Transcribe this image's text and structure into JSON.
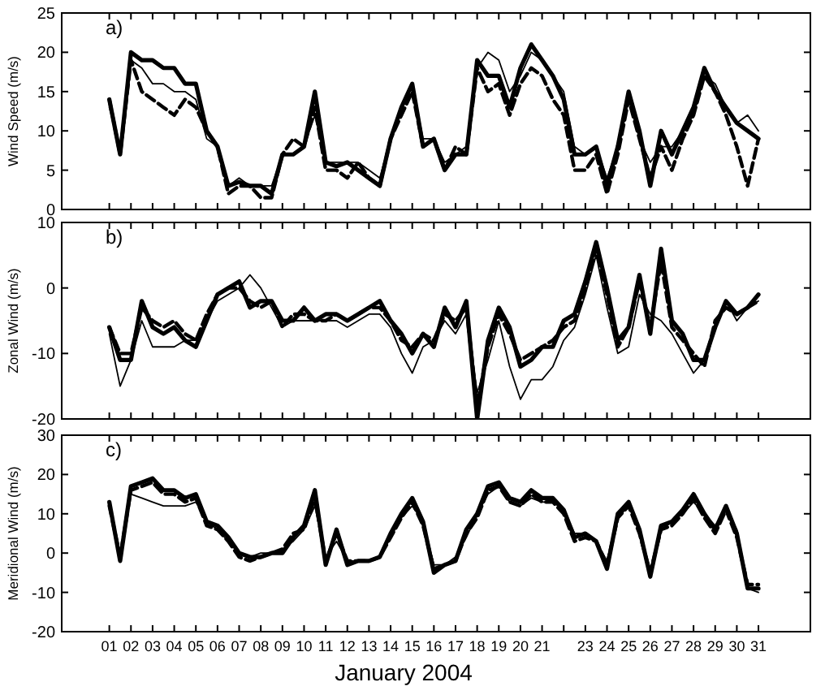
{
  "chart_data": [
    {
      "type": "line",
      "ylabel": "Wind Speed (m/s)",
      "annotations": [
        "a)"
      ],
      "tick_labels": "y",
      "line_style": "solid",
      "marker": "none",
      "grid": false,
      "xlim": [
        -1.2,
        33.4
      ],
      "ylim": [
        0,
        25
      ],
      "yticks": [
        0,
        5,
        10,
        15,
        20,
        25
      ],
      "xticks": [
        1,
        2,
        3,
        4,
        5,
        6,
        7,
        8,
        9,
        10,
        11,
        12,
        13,
        14,
        15,
        16,
        17,
        18,
        19,
        20,
        21,
        22,
        23,
        24,
        25,
        26,
        27,
        28,
        29,
        30,
        31
      ],
      "x": [
        1,
        1.5,
        2,
        2.5,
        3,
        3.5,
        4,
        4.5,
        5,
        5.5,
        6,
        6.5,
        7,
        7.5,
        8,
        8.5,
        9,
        9.5,
        10,
        10.5,
        11,
        11.5,
        12,
        12.5,
        13,
        13.5,
        14,
        14.5,
        15,
        15.5,
        16,
        16.5,
        17,
        17.5,
        18,
        18.5,
        19,
        19.5,
        20,
        20.5,
        21,
        21.5,
        22,
        22.5,
        23,
        23.5,
        24,
        24.5,
        25,
        25.5,
        26,
        26.5,
        27,
        27.5,
        28,
        28.5,
        29,
        29.5,
        30,
        30.5,
        31
      ],
      "series": [
        {
          "color": "#000000",
          "values": [
            14,
            7,
            20,
            19,
            19,
            18,
            18,
            16,
            16,
            10,
            8,
            3,
            3.5,
            3,
            3,
            2,
            7,
            7,
            8,
            15,
            6,
            5.5,
            6,
            5,
            4,
            3,
            9,
            13,
            16,
            8,
            9,
            5,
            7,
            7,
            19,
            17,
            17,
            13,
            18,
            21,
            19,
            17,
            14,
            7,
            7,
            8,
            3,
            8,
            15,
            10,
            3,
            10,
            7,
            10,
            13,
            18,
            15,
            13,
            11,
            10,
            9
          ]
        },
        {
          "color": "#000000",
          "line_style": "dashed",
          "values": [
            14,
            7,
            19,
            15,
            14,
            13,
            12,
            14,
            13,
            10,
            8,
            2,
            3,
            3,
            1.5,
            1.5,
            7,
            9,
            8,
            13,
            5,
            5,
            4,
            6,
            4,
            3,
            9,
            12,
            15,
            8,
            9,
            5,
            8,
            7,
            18,
            15,
            16,
            12,
            16,
            18,
            17,
            14,
            12,
            5,
            5,
            7,
            2,
            7,
            14,
            9,
            4,
            8,
            5,
            9,
            12,
            17,
            15,
            12,
            8,
            3,
            9
          ]
        },
        {
          "color": "#000000",
          "values": [
            13,
            8,
            19,
            18,
            16,
            16,
            15,
            15,
            14,
            9,
            8,
            3,
            4,
            3,
            3,
            3,
            7,
            7,
            8,
            12,
            6,
            6,
            6,
            6,
            5,
            4,
            9,
            13,
            16,
            9,
            9,
            6,
            7,
            8,
            18,
            20,
            19,
            15,
            17,
            20,
            19,
            17,
            15,
            8,
            7,
            8,
            4,
            8,
            14,
            9,
            6,
            8,
            8,
            10,
            12,
            17,
            16,
            13,
            11,
            12,
            10
          ]
        }
      ]
    },
    {
      "type": "line",
      "ylabel": "Zonal Wind (m/s)",
      "annotations": [
        "b)"
      ],
      "tick_labels": "y",
      "line_style": "solid",
      "marker": "none",
      "grid": false,
      "xlim": [
        -1.2,
        33.4
      ],
      "ylim": [
        -20,
        10
      ],
      "yticks": [
        -20,
        -10,
        0,
        10
      ],
      "xticks": [
        1,
        2,
        3,
        4,
        5,
        6,
        7,
        8,
        9,
        10,
        11,
        12,
        13,
        14,
        15,
        16,
        17,
        18,
        19,
        20,
        21,
        22,
        23,
        24,
        25,
        26,
        27,
        28,
        29,
        30,
        31
      ],
      "x": [
        1,
        1.5,
        2,
        2.5,
        3,
        3.5,
        4,
        4.5,
        5,
        5.5,
        6,
        6.5,
        7,
        7.5,
        8,
        8.5,
        9,
        9.5,
        10,
        10.5,
        11,
        11.5,
        12,
        12.5,
        13,
        13.5,
        14,
        14.5,
        15,
        15.5,
        16,
        16.5,
        17,
        17.5,
        18,
        18.5,
        19,
        19.5,
        20,
        20.5,
        21,
        21.5,
        22,
        22.5,
        23,
        23.5,
        24,
        24.5,
        25,
        25.5,
        26,
        26.5,
        27,
        27.5,
        28,
        28.5,
        29,
        29.5,
        30,
        30.5,
        31
      ],
      "series": [
        {
          "color": "#000000",
          "values": [
            -6,
            -11,
            -11,
            -2,
            -6,
            -7,
            -6,
            -8,
            -9,
            -5,
            -1,
            0,
            1,
            -3,
            -2,
            -2,
            -5,
            -5,
            -3,
            -5,
            -4,
            -4,
            -5,
            -4,
            -3,
            -2,
            -5,
            -7,
            -10,
            -7,
            -9,
            -3,
            -6,
            -2,
            -20,
            -8,
            -3,
            -6,
            -12,
            -11,
            -9,
            -9,
            -5,
            -4,
            1,
            7,
            0,
            -8,
            -6,
            2,
            -7,
            6,
            -5,
            -7,
            -11,
            -11,
            -6,
            -2,
            -4,
            -3,
            -1
          ]
        },
        {
          "color": "#000000",
          "line_style": "dashed",
          "values": [
            -6,
            -10,
            -10,
            -3,
            -5,
            -6,
            -5,
            -7,
            -8,
            -4,
            -1,
            0,
            0,
            -2,
            -3,
            -2,
            -6,
            -4,
            -4,
            -5,
            -5,
            -4,
            -5,
            -4,
            -3,
            -3,
            -5,
            -8,
            -9,
            -7,
            -8,
            -4,
            -5,
            -3,
            -18,
            -9,
            -4,
            -7,
            -11,
            -10,
            -9,
            -8,
            -6,
            -5,
            0,
            6,
            -1,
            -9,
            -6,
            1,
            -6,
            4,
            -6,
            -8,
            -10,
            -12,
            -5,
            -3,
            -4,
            -3,
            -2
          ]
        },
        {
          "color": "#000000",
          "values": [
            -7,
            -15,
            -11,
            -5,
            -9,
            -9,
            -9,
            -8,
            -8,
            -5,
            -2,
            -1,
            0,
            2,
            0,
            -3,
            -6,
            -5,
            -5,
            -5,
            -5,
            -5,
            -6,
            -5,
            -4,
            -4,
            -6,
            -10,
            -13,
            -9,
            -8,
            -5,
            -7,
            -4,
            -16,
            -11,
            -5,
            -12,
            -17,
            -14,
            -14,
            -12,
            -8,
            -6,
            -1,
            5,
            -3,
            -10,
            -9,
            -1,
            -4,
            -5,
            -7,
            -10,
            -13,
            -11,
            -6,
            -2,
            -5,
            -3,
            -2
          ]
        }
      ]
    },
    {
      "type": "line",
      "ylabel": "Meridional Wind (m/s)",
      "xlabel": "January 2004",
      "annotations": [
        "c)"
      ],
      "line_style": "solid",
      "marker": "none",
      "grid": false,
      "xlim": [
        -1.2,
        33.4
      ],
      "ylim": [
        -20,
        30
      ],
      "yticks": [
        -20,
        -10,
        0,
        10,
        20,
        30
      ],
      "xticks": [
        {
          "value": 1,
          "label": "01"
        },
        {
          "value": 2,
          "label": "02"
        },
        {
          "value": 3,
          "label": "03"
        },
        {
          "value": 4,
          "label": "04"
        },
        {
          "value": 5,
          "label": "05"
        },
        {
          "value": 6,
          "label": "06"
        },
        {
          "value": 7,
          "label": "07"
        },
        {
          "value": 8,
          "label": "08"
        },
        {
          "value": 9,
          "label": "09"
        },
        {
          "value": 10,
          "label": "10"
        },
        {
          "value": 11,
          "label": "11"
        },
        {
          "value": 12,
          "label": "12"
        },
        {
          "value": 13,
          "label": "13"
        },
        {
          "value": 14,
          "label": "14"
        },
        {
          "value": 15,
          "label": "15"
        },
        {
          "value": 16,
          "label": "16"
        },
        {
          "value": 17,
          "label": "17"
        },
        {
          "value": 18,
          "label": "18"
        },
        {
          "value": 19,
          "label": "19"
        },
        {
          "value": 20,
          "label": "20"
        },
        {
          "value": 21,
          "label": "21"
        },
        {
          "value": 22,
          "label": null
        },
        {
          "value": 23,
          "label": "23"
        },
        {
          "value": 24,
          "label": "24"
        },
        {
          "value": 25,
          "label": "25"
        },
        {
          "value": 26,
          "label": "26"
        },
        {
          "value": 27,
          "label": "27"
        },
        {
          "value": 28,
          "label": "28"
        },
        {
          "value": 29,
          "label": "29"
        },
        {
          "value": 30,
          "label": "30"
        },
        {
          "value": 31,
          "label": "31"
        }
      ],
      "x": [
        1,
        1.5,
        2,
        2.5,
        3,
        3.5,
        4,
        4.5,
        5,
        5.5,
        6,
        6.5,
        7,
        7.5,
        8,
        8.5,
        9,
        9.5,
        10,
        10.5,
        11,
        11.5,
        12,
        12.5,
        13,
        13.5,
        14,
        14.5,
        15,
        15.5,
        16,
        16.5,
        17,
        17.5,
        18,
        18.5,
        19,
        19.5,
        20,
        20.5,
        21,
        21.5,
        22,
        22.5,
        23,
        23.5,
        24,
        24.5,
        25,
        25.5,
        26,
        26.5,
        27,
        27.5,
        28,
        28.5,
        29,
        29.5,
        30,
        30.5,
        31
      ],
      "series": [
        {
          "color": "#000000",
          "values": [
            13,
            -2,
            17,
            18,
            19,
            16,
            16,
            14,
            15,
            8,
            7,
            4,
            0,
            -1,
            -1,
            0,
            0,
            4,
            7,
            16,
            -3,
            6,
            -3,
            -2,
            -2,
            -1,
            5,
            10,
            14,
            8,
            -5,
            -3,
            -2,
            6,
            10,
            17,
            18,
            14,
            13,
            16,
            14,
            14,
            11,
            4,
            5,
            3,
            -4,
            10,
            13,
            6,
            -6,
            7,
            8,
            11,
            15,
            10,
            6,
            12,
            5,
            -9,
            -9
          ]
        },
        {
          "color": "#000000",
          "line_style": "dashed",
          "values": [
            12,
            -1,
            16,
            17,
            18,
            15,
            15,
            13,
            14,
            7,
            6,
            3,
            -1,
            -2,
            -1,
            0,
            1,
            5,
            6,
            14,
            -2,
            5,
            -2,
            -2,
            -2,
            -1,
            4,
            9,
            13,
            7,
            -4,
            -3,
            -2,
            5,
            9,
            16,
            17,
            13,
            12,
            15,
            13,
            13,
            10,
            3,
            4,
            3,
            -3,
            9,
            12,
            5,
            -5,
            6,
            7,
            10,
            14,
            9,
            5,
            11,
            4,
            -8,
            -8
          ]
        },
        {
          "color": "#000000",
          "values": [
            12,
            0,
            15,
            14,
            13,
            12,
            12,
            12,
            13,
            8,
            6,
            3,
            0,
            -1,
            0,
            0,
            1,
            3,
            6,
            12,
            -1,
            3,
            -2,
            -2,
            -2,
            -1,
            4,
            9,
            12,
            8,
            -3,
            -3,
            -1,
            4,
            10,
            15,
            17,
            13,
            12,
            14,
            13,
            13,
            11,
            5,
            5,
            3,
            -2,
            9,
            12,
            6,
            -5,
            6,
            8,
            10,
            13,
            10,
            7,
            11,
            6,
            -9,
            -10
          ]
        }
      ]
    }
  ]
}
